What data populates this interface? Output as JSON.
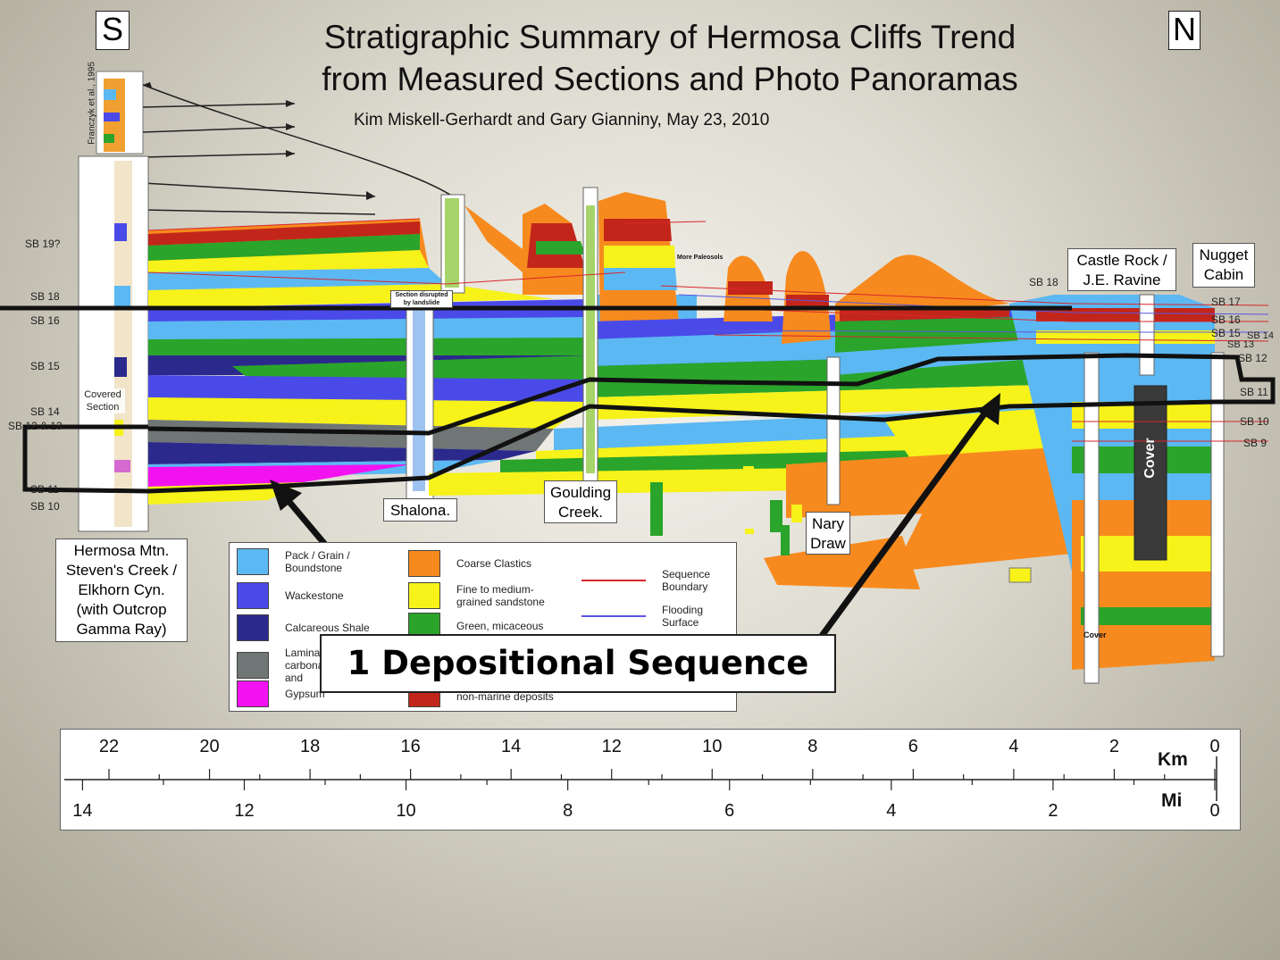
{
  "directions": {
    "south": "S",
    "north": "N"
  },
  "title": {
    "line1": "Stratigraphic Summary of Hermosa Cliffs Trend",
    "line2": "from Measured Sections and Photo Panoramas"
  },
  "authors": "Kim Miskell-Gerhardt and Gary Gianniny, May 23, 2010",
  "small_column_caption": "Franczyk et al., 1995",
  "covered_section": "Covered Section",
  "section_disrupted": "Section disrupted by landslide",
  "more_paleosols": "More Paleosols",
  "sections": {
    "hermosa": [
      "Hermosa Mtn.",
      "Steven's Creek /",
      "Elkhorn Cyn.",
      "(with Outcrop",
      "Gamma Ray)"
    ],
    "shalona": "Shalona.",
    "goulding": [
      "Goulding",
      "Creek."
    ],
    "nary": [
      "Nary",
      "Draw"
    ],
    "castle": [
      "Castle Rock /",
      "J.E. Ravine"
    ],
    "nugget": [
      "Nugget",
      "Cabin"
    ]
  },
  "cover_label": "Cover",
  "small_cover": "Cover",
  "sb_left": [
    "SB 19?",
    "SB 18",
    "SB 16",
    "SB 15",
    "SB 14",
    "SB 12 & 13",
    "SB 11",
    "SB 10"
  ],
  "sb_right": [
    "SB 18",
    "SB 17",
    "SB 16",
    "SB 15",
    "SB 14",
    "SB 13",
    "SB 12",
    "SB 11",
    "SB 10",
    "SB 9"
  ],
  "legend": {
    "items_left": [
      {
        "label": "Pack / Grain / Boundstone",
        "color": "#5cb8f2"
      },
      {
        "label": "Wackestone",
        "color": "#4a4ae8"
      },
      {
        "label": "Calcareous Shale",
        "color": "#2b2a8c"
      },
      {
        "label": "Laminated carbonates and",
        "color": "#6f7675"
      },
      {
        "label": "Gypsum",
        "color": "#f212f0"
      }
    ],
    "items_mid": [
      {
        "label": "Coarse Clastics",
        "color": "#f78a1e"
      },
      {
        "label": "Fine to medium-grained sandstone",
        "color": "#f6f21a"
      },
      {
        "label": "Green, micaceous",
        "color": "#2aa42a"
      },
      {
        "label": "non-marine deposits",
        "color": "#c2261a"
      }
    ],
    "lines": [
      {
        "label": "Sequence Boundary",
        "color": "#d8262a"
      },
      {
        "label": "Flooding Surface",
        "color": "#5a55e0"
      }
    ]
  },
  "callout": "1 Depositional Sequence",
  "scale": {
    "km_unit": "Km",
    "mi_unit": "Mi",
    "km_ticks": [
      "22",
      "20",
      "18",
      "16",
      "14",
      "12",
      "10",
      "8",
      "6",
      "4",
      "2",
      "0"
    ],
    "mi_ticks": [
      "14",
      "12",
      "10",
      "8",
      "6",
      "4",
      "2",
      "0"
    ]
  }
}
